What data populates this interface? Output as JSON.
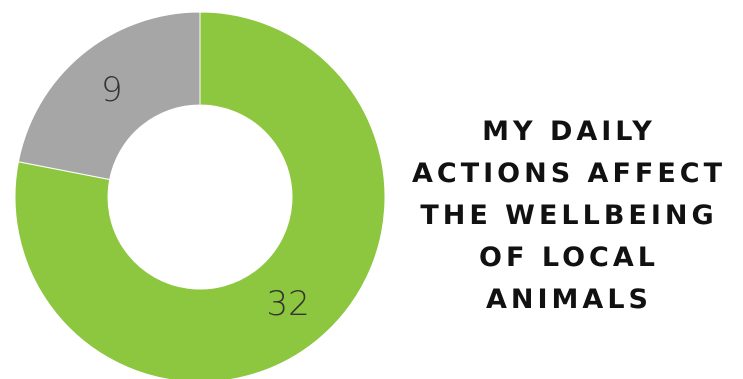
{
  "chart_data": {
    "type": "pie",
    "donut": true,
    "categories": [
      "",
      ""
    ],
    "values": [
      32,
      9
    ],
    "colors": [
      "#8dc63f",
      "#a6a6a6"
    ],
    "slice_labels": [
      "32",
      "9"
    ],
    "title_lines": [
      "MY DAILY",
      "ACTIONS AFFECT",
      "THE WELLBEING",
      "OF LOCAL",
      "ANIMALS"
    ],
    "legend": "none"
  }
}
